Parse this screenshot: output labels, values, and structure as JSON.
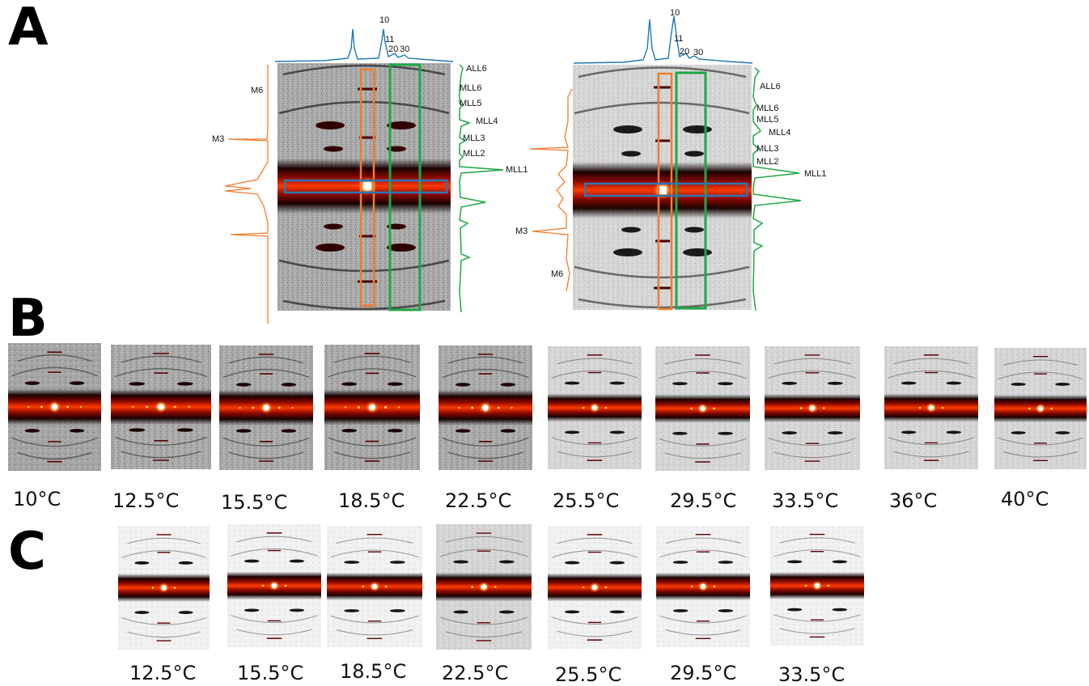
{
  "panels": {
    "a": "A",
    "b": "B",
    "c": "C"
  },
  "panel_a": {
    "left": {
      "top_profile_labels": [
        "10",
        "11",
        "20",
        "30"
      ],
      "right_profile_labels": [
        "ALL6",
        "MLL6",
        "MLL5",
        "MLL4",
        "MLL3",
        "MLL2",
        "MLL1"
      ],
      "left_profile_labels": [
        "M6",
        "M3"
      ]
    },
    "right": {
      "top_profile_labels": [
        "10",
        "11",
        "20",
        "30"
      ],
      "right_profile_labels": [
        "ALL6",
        "MLL6",
        "MLL5",
        "MLL4",
        "MLL3",
        "MLL2",
        "MLL1"
      ],
      "left_profile_labels": [
        "M3",
        "M6"
      ]
    },
    "colors": {
      "meridional_box": "#ee7d31",
      "layer_line_box": "#1fa748",
      "equatorial_box": "#2e75b6",
      "equatorial_profile": "#1f77b4",
      "meridional_profile": "#ee7d31",
      "layer_line_profile": "#1fa748",
      "background_pattern": "#9a9a9a",
      "intensity_hot": "#ff2a00"
    }
  },
  "panel_b": {
    "temperatures": [
      "10°C",
      "12.5°C",
      "15.5°C",
      "18.5°C",
      "22.5°C",
      "25.5°C",
      "29.5°C",
      "33.5°C",
      "36°C",
      "40°C"
    ]
  },
  "panel_c": {
    "temperatures": [
      "12.5°C",
      "15.5°C",
      "18.5°C",
      "22.5°C",
      "25.5°C",
      "29.5°C",
      "33.5°C"
    ]
  }
}
